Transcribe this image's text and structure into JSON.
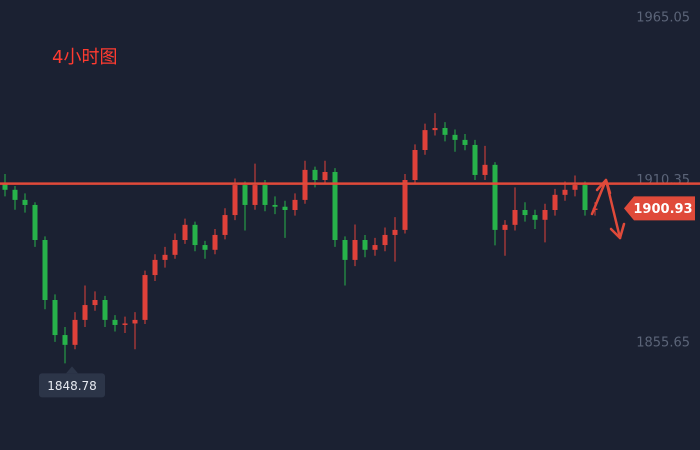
{
  "chart_data": {
    "type": "candlestick",
    "title": "4小时图",
    "open": [
      1909.0,
      1907.2,
      1903.8,
      1902.1,
      1890.3,
      1870.1,
      1858.3,
      1855.0,
      1863.4,
      1868.4,
      1870.1,
      1863.4,
      1861.7,
      1862.2,
      1863.4,
      1878.5,
      1883.6,
      1885.3,
      1890.3,
      1895.4,
      1888.6,
      1887.0,
      1892.0,
      1898.7,
      1908.8,
      1902.1,
      1908.8,
      1902.1,
      1901.5,
      1900.4,
      1903.8,
      1913.9,
      1910.5,
      1913.2,
      1890.3,
      1883.6,
      1890.3,
      1887.0,
      1888.6,
      1892.0,
      1893.7,
      1910.5,
      1920.6,
      1927.3,
      1928.0,
      1925.7,
      1924.0,
      1922.3,
      1912.2,
      1915.6,
      1893.7,
      1895.4,
      1900.4,
      1898.7,
      1897.1,
      1900.4,
      1905.5,
      1907.2,
      1908.8,
      1900.4
    ],
    "high": [
      1912.5,
      1908.5,
      1906.0,
      1903.0,
      1891.5,
      1872.0,
      1861.0,
      1866.0,
      1875.0,
      1873.0,
      1871.5,
      1865.0,
      1864.5,
      1866.0,
      1880.0,
      1885.5,
      1888.0,
      1892.5,
      1897.5,
      1896.5,
      1890.0,
      1894.0,
      1901.0,
      1911.0,
      1910.0,
      1916.0,
      1910.5,
      1905.0,
      1903.5,
      1906.0,
      1917.0,
      1915.0,
      1917.0,
      1914.5,
      1891.5,
      1895.5,
      1892.0,
      1891.0,
      1894.5,
      1898.0,
      1912.5,
      1922.5,
      1929.5,
      1933.0,
      1930.0,
      1927.5,
      1926.0,
      1924.0,
      1922.0,
      1916.5,
      1897.0,
      1908.0,
      1903.0,
      1900.5,
      1902.5,
      1907.5,
      1910.0,
      1912.0,
      1910.0,
      1903.0
    ],
    "low": [
      1905.0,
      1900.5,
      1899.5,
      1888.0,
      1867.0,
      1856.0,
      1848.78,
      1853.5,
      1861.0,
      1866.5,
      1861.0,
      1859.5,
      1859.0,
      1853.5,
      1862.0,
      1876.5,
      1881.0,
      1884.0,
      1889.0,
      1886.5,
      1884.0,
      1885.5,
      1890.5,
      1897.0,
      1893.5,
      1900.5,
      1900.0,
      1899.0,
      1891.0,
      1898.5,
      1902.5,
      1908.0,
      1909.0,
      1888.0,
      1875.0,
      1881.5,
      1884.5,
      1885.0,
      1886.5,
      1883.0,
      1892.5,
      1909.0,
      1919.0,
      1925.5,
      1923.5,
      1920.0,
      1920.5,
      1910.5,
      1910.5,
      1888.5,
      1885.0,
      1893.5,
      1896.5,
      1894.0,
      1889.5,
      1898.5,
      1903.5,
      1905.0,
      1898.5,
      1898.5
    ],
    "close": [
      1907.2,
      1903.8,
      1902.1,
      1890.3,
      1870.1,
      1858.3,
      1855.0,
      1863.4,
      1868.4,
      1870.1,
      1863.4,
      1861.7,
      1862.2,
      1863.4,
      1878.5,
      1883.6,
      1885.3,
      1890.3,
      1895.4,
      1888.6,
      1887.0,
      1892.0,
      1898.7,
      1908.8,
      1902.1,
      1908.8,
      1902.1,
      1901.5,
      1900.4,
      1903.8,
      1913.9,
      1910.5,
      1913.2,
      1890.3,
      1883.6,
      1890.3,
      1887.0,
      1888.6,
      1892.0,
      1893.7,
      1910.5,
      1920.6,
      1927.3,
      1928.0,
      1925.7,
      1924.0,
      1922.3,
      1912.2,
      1915.6,
      1893.7,
      1895.4,
      1900.4,
      1898.7,
      1897.1,
      1900.4,
      1905.5,
      1907.2,
      1908.8,
      1900.4,
      1900.9
    ],
    "up_color": "#e0413a",
    "down_color": "#27b34a",
    "ylim": [
      1819.6,
      1971.1
    ],
    "yticks": [
      1855.65,
      1910.35,
      1965.05
    ],
    "hline": 1909.3,
    "last_price": 1900.93,
    "low_label": 1848.78
  }
}
